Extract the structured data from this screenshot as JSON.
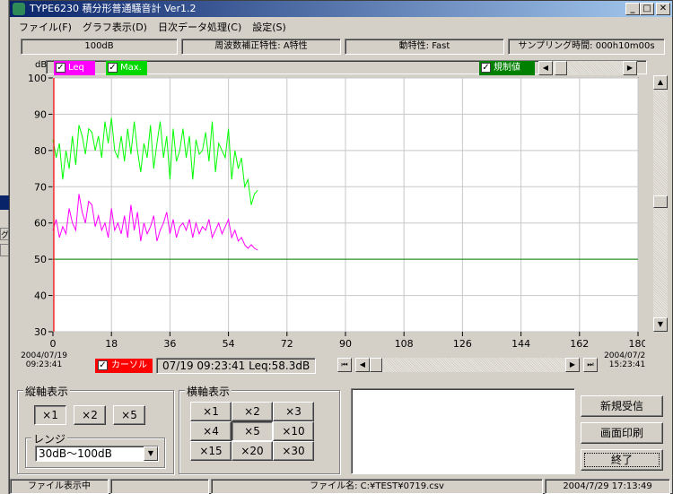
{
  "window": {
    "title": "TYPE6230 積分形普通騒音計 Ver1.2",
    "buttons": {
      "minimize": "_",
      "maximize": "□",
      "close": "✕"
    }
  },
  "menu": [
    "ファイル(F)",
    "グラフ表示(D)",
    "日次データ処理(C)",
    "設定(S)"
  ],
  "status_row": {
    "range": "100dB",
    "weighting": "周波数補正特性: A特性",
    "dynamics": "動特性: Fast",
    "sampling": "サンプリング時間: 000h10m00s"
  },
  "legend": {
    "leq": "Leq",
    "max": "Max.",
    "limit": "規制値",
    "leq_color": "#ff00ff",
    "max_color": "#00ff00",
    "limit_color": "#008000"
  },
  "chart_data": {
    "type": "line",
    "ylabel": "dB",
    "ylim": [
      30,
      100
    ],
    "yticks": [
      30,
      40,
      50,
      60,
      70,
      80,
      90,
      100
    ],
    "xlim": [
      0,
      180
    ],
    "xticks": [
      0,
      18,
      36,
      54,
      72,
      90,
      108,
      126,
      144,
      162,
      180
    ],
    "x_start_date": "2004/07/19",
    "x_start_time": "09:23:41",
    "x_end_date": "2004/07/20",
    "x_end_time": "15:23:41",
    "limit_value": 50,
    "grid": true,
    "series": [
      {
        "name": "Max.",
        "color": "#00ff00",
        "x": [
          0,
          1,
          2,
          3,
          4,
          5,
          6,
          7,
          8,
          9,
          10,
          11,
          12,
          13,
          14,
          15,
          16,
          17,
          18,
          19,
          20,
          21,
          22,
          23,
          24,
          25,
          26,
          27,
          28,
          29,
          30,
          31,
          32,
          33,
          34,
          35,
          36,
          37,
          38,
          39,
          40,
          41,
          42,
          43,
          44,
          45,
          46,
          47,
          48,
          49,
          50,
          51,
          52,
          53,
          54,
          55,
          56,
          57,
          58,
          59,
          60,
          61,
          62,
          63
        ],
        "y": [
          83,
          78,
          82,
          72,
          80,
          75,
          84,
          76,
          87,
          84,
          79,
          86,
          85,
          80,
          84,
          78,
          88,
          82,
          89,
          80,
          78,
          84,
          77,
          86,
          79,
          88,
          80,
          74,
          82,
          78,
          87,
          75,
          82,
          88,
          78,
          84,
          72,
          86,
          77,
          80,
          86,
          78,
          84,
          72,
          83,
          79,
          80,
          85,
          77,
          88,
          74,
          82,
          80,
          78,
          86,
          72,
          80,
          75,
          78,
          70,
          72,
          65,
          68,
          69
        ]
      },
      {
        "name": "Leq",
        "color": "#ff00ff",
        "x": [
          0,
          1,
          2,
          3,
          4,
          5,
          6,
          7,
          8,
          9,
          10,
          11,
          12,
          13,
          14,
          15,
          16,
          17,
          18,
          19,
          20,
          21,
          22,
          23,
          24,
          25,
          26,
          27,
          28,
          29,
          30,
          31,
          32,
          33,
          34,
          35,
          36,
          37,
          38,
          39,
          40,
          41,
          42,
          43,
          44,
          45,
          46,
          47,
          48,
          49,
          50,
          51,
          52,
          53,
          54,
          55,
          56,
          57,
          58,
          59,
          60,
          61,
          62,
          63
        ],
        "y": [
          58,
          61,
          56,
          59,
          57,
          64,
          60,
          58,
          68,
          63,
          60,
          66,
          65,
          59,
          62,
          58,
          60,
          56,
          64,
          58,
          60,
          57,
          62,
          56,
          65,
          58,
          63,
          55,
          60,
          57,
          59,
          62,
          55,
          58,
          60,
          63,
          57,
          61,
          56,
          59,
          60,
          58,
          61,
          56,
          60,
          57,
          59,
          58,
          61,
          56,
          58,
          60,
          57,
          59,
          61,
          56,
          58,
          55,
          56,
          54,
          53,
          54,
          53,
          52.5
        ]
      }
    ]
  },
  "cursor": {
    "label": "カーソル",
    "readout": "07/19 09:23:41 Leq:58.3dB"
  },
  "vertical_axis": {
    "title": "縦軸表示",
    "buttons": [
      "×1",
      "×2",
      "×5"
    ],
    "range_title": "レンジ",
    "range_value": "30dB〜100dB"
  },
  "horizontal_axis": {
    "title": "横軸表示",
    "buttons": [
      "×1",
      "×2",
      "×3",
      "×4",
      "×5",
      "×10",
      "×15",
      "×20",
      "×30"
    ]
  },
  "actions": {
    "new_receive": "新規受信",
    "print": "画面印刷",
    "exit": "終了"
  },
  "statusbar": {
    "mode": "ファイル表示中",
    "file": "ファイル名: C:¥TEST¥0719.csv",
    "datetime": "2004/7/29 17:13:49"
  },
  "left_strip": {
    "label1": "グ"
  }
}
